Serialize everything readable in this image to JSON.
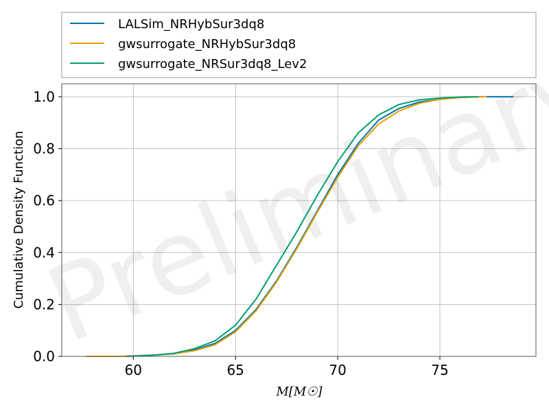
{
  "watermark": "Preliminary",
  "chart_data": {
    "type": "line",
    "title": "",
    "xlabel": "M[M☉]",
    "ylabel": "Cumulative Density Function",
    "xlim": [
      56.5,
      79.7
    ],
    "ylim": [
      0.0,
      1.05
    ],
    "xticks": [
      60,
      65,
      70,
      75
    ],
    "yticks": [
      0.0,
      0.2,
      0.4,
      0.6,
      0.8,
      1.0
    ],
    "grid": true,
    "legend_position": "top (outside plot)",
    "series": [
      {
        "name": "LALSim_NRHybSur3dq8",
        "color": "#0072B2",
        "x": [
          59.5,
          61.0,
          62.0,
          63.0,
          64.0,
          65.0,
          66.0,
          67.0,
          68.0,
          69.0,
          70.0,
          71.0,
          72.0,
          73.0,
          74.0,
          75.0,
          76.0,
          77.0,
          78.0,
          78.6
        ],
        "y": [
          0.0,
          0.005,
          0.01,
          0.025,
          0.05,
          0.1,
          0.18,
          0.29,
          0.42,
          0.56,
          0.7,
          0.82,
          0.91,
          0.955,
          0.98,
          0.99,
          0.997,
          1.0,
          1.0,
          1.0
        ]
      },
      {
        "name": "gwsurrogate_NRHybSur3dq8",
        "color": "#E69F00",
        "x": [
          57.7,
          59.5,
          61.0,
          62.0,
          63.0,
          64.0,
          65.0,
          66.0,
          67.0,
          68.0,
          69.0,
          70.0,
          71.0,
          72.0,
          73.0,
          74.0,
          75.0,
          76.0,
          77.3
        ],
        "y": [
          0.0,
          0.0,
          0.005,
          0.01,
          0.022,
          0.045,
          0.095,
          0.175,
          0.285,
          0.415,
          0.555,
          0.69,
          0.81,
          0.895,
          0.945,
          0.975,
          0.99,
          0.997,
          1.0
        ]
      },
      {
        "name": "gwsurrogate_NRSur3dq8_Lev2",
        "color": "#009E73",
        "x": [
          59.7,
          61.0,
          62.0,
          63.0,
          64.0,
          65.0,
          66.0,
          67.0,
          68.0,
          69.0,
          70.0,
          71.0,
          72.0,
          73.0,
          74.0,
          75.0,
          76.0,
          76.9
        ],
        "y": [
          0.0,
          0.005,
          0.012,
          0.03,
          0.06,
          0.12,
          0.22,
          0.35,
          0.48,
          0.62,
          0.75,
          0.86,
          0.93,
          0.97,
          0.988,
          0.995,
          0.999,
          1.0
        ]
      }
    ]
  }
}
